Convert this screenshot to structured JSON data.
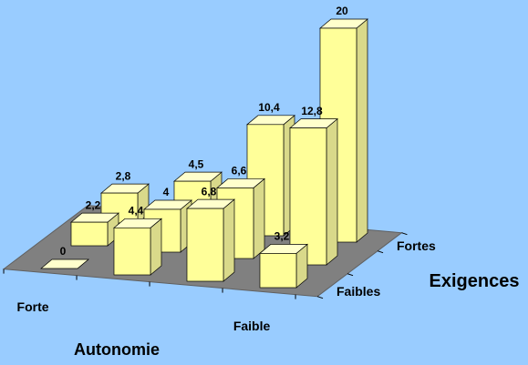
{
  "chart_data": {
    "type": "bar3d",
    "x_label": "Autonomie",
    "depth_label": "Exigences",
    "categories": [
      "Forte",
      null,
      null,
      "Faible"
    ],
    "color": "#ffff99",
    "series": [
      {
        "name": "Faibles",
        "values": [
          0,
          4.4,
          6.8,
          3.2
        ],
        "value_labels": [
          "0",
          "4,4",
          "6,8",
          "3,2"
        ]
      },
      {
        "name": null,
        "values": [
          2.2,
          4,
          6.6,
          12.8
        ],
        "value_labels": [
          "2,2",
          "4",
          "6,6",
          "12,8"
        ]
      },
      {
        "name": "Fortes",
        "values": [
          2.8,
          4.5,
          10.4,
          20
        ],
        "value_labels": [
          "2,8",
          "4,5",
          "10,4",
          "20"
        ]
      }
    ]
  }
}
